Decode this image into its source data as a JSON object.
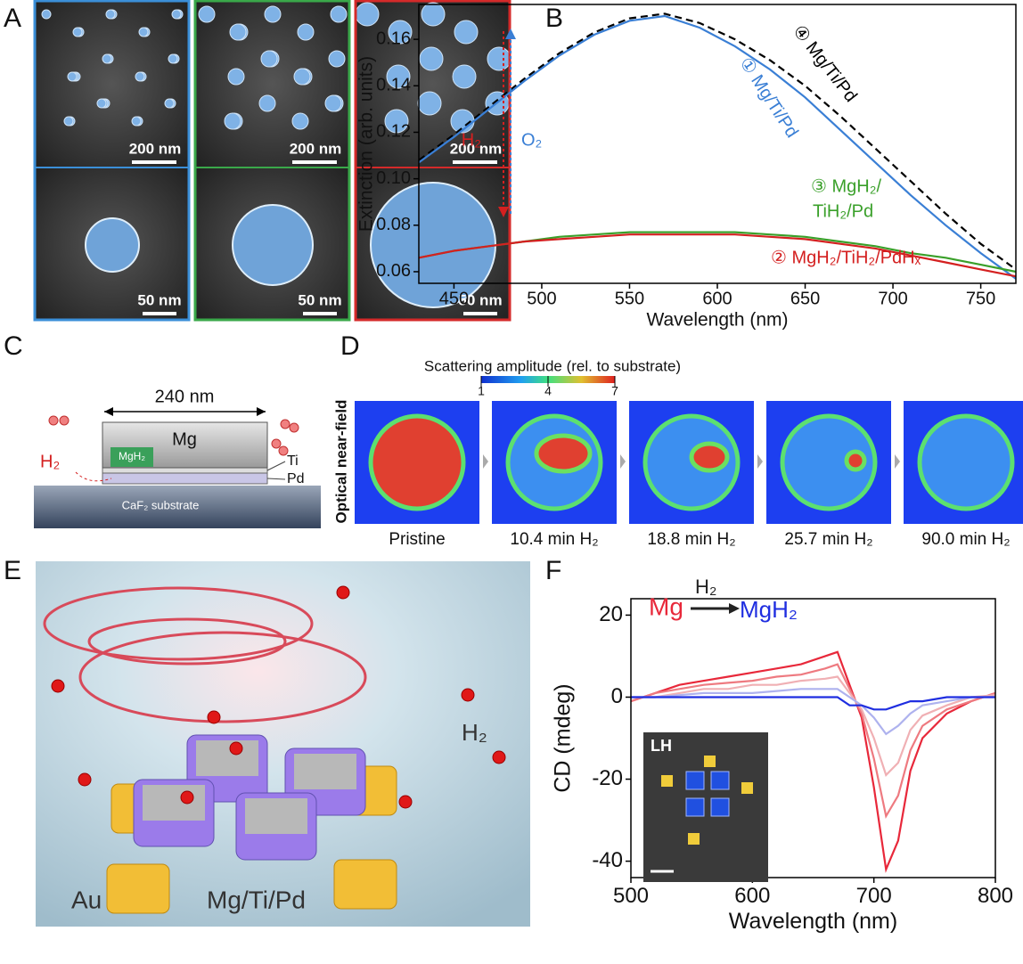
{
  "panels": {
    "a": {
      "label": "A",
      "scale_bars": [
        "200 nm",
        "200 nm",
        "200 nm",
        "50 nm",
        "50 nm",
        "50 nm"
      ]
    },
    "b": {
      "label": "B"
    },
    "c": {
      "label": "C",
      "width_label": "240 nm",
      "layers": [
        "Mg",
        "MgH₂",
        "Ti",
        "Pd"
      ],
      "gas": "H₂",
      "substrate": "CaF₂ substrate"
    },
    "d": {
      "label": "D",
      "colorbar": {
        "title": "Scattering amplitude (rel. to substrate)",
        "ticks": [
          1,
          4,
          7
        ]
      },
      "row_label": "Optical near-field",
      "frames": [
        "Pristine",
        "10.4 min H₂",
        "18.8 min H₂",
        "25.7 min H₂",
        "90.0 min H₂"
      ]
    },
    "e": {
      "label": "E",
      "labels": [
        "Au",
        "Mg/Ti/Pd",
        "H₂"
      ]
    },
    "f": {
      "label": "F"
    }
  },
  "chart_data": [
    {
      "type": "line",
      "x_label": "Wavelength (nm)",
      "y_label": "Extinction (arb. units)",
      "x": [
        430,
        450,
        470,
        490,
        510,
        530,
        550,
        570,
        590,
        610,
        630,
        650,
        670,
        690,
        710,
        730,
        750,
        770
      ],
      "series": [
        {
          "color": "#000000",
          "line_style": "dashed",
          "values": [
            0.108,
            0.119,
            0.131,
            0.143,
            0.154,
            0.163,
            0.169,
            0.171,
            0.167,
            0.16,
            0.151,
            0.14,
            0.127,
            0.113,
            0.099,
            0.085,
            0.072,
            0.061
          ]
        },
        {
          "color": "#3a7fd5",
          "values": [
            0.107,
            0.118,
            0.13,
            0.142,
            0.153,
            0.162,
            0.168,
            0.17,
            0.165,
            0.157,
            0.147,
            0.135,
            0.121,
            0.107,
            0.093,
            0.08,
            0.068,
            0.057
          ]
        },
        {
          "color": "#3aa02a",
          "values": [
            0.066,
            0.069,
            0.071,
            0.073,
            0.075,
            0.076,
            0.077,
            0.077,
            0.077,
            0.077,
            0.076,
            0.075,
            0.073,
            0.071,
            0.068,
            0.066,
            0.063,
            0.06
          ]
        },
        {
          "color": "#d42020",
          "values": [
            0.066,
            0.069,
            0.071,
            0.073,
            0.074,
            0.075,
            0.076,
            0.076,
            0.076,
            0.076,
            0.075,
            0.074,
            0.072,
            0.07,
            0.067,
            0.064,
            0.061,
            0.058
          ]
        }
      ],
      "annotations": [
        "H₂",
        "O₂",
        "④ Mg/Ti/Pd",
        "① Mg/Ti/Pd",
        "③ MgH₂/",
        "TiH₂/Pd",
        "② MgH₂/TiH₂/PdHₓ"
      ],
      "xlim": [
        430,
        770
      ],
      "xticks": [
        450,
        500,
        550,
        600,
        650,
        700,
        750
      ],
      "ylim": [
        0.055,
        0.175
      ],
      "yticks": [
        0.06,
        0.08,
        {
          "value": 0.1,
          "label": "0.10"
        },
        0.12,
        0.14,
        0.16
      ]
    },
    {
      "type": "line",
      "x_label": "Wavelength (nm)",
      "y_label": "CD (mdeg)",
      "x": [
        500,
        520,
        540,
        560,
        580,
        600,
        620,
        640,
        660,
        670,
        680,
        690,
        700,
        710,
        720,
        730,
        740,
        760,
        780,
        800
      ],
      "series": [
        {
          "color": "#e8283a",
          "values": [
            -1,
            1,
            3,
            4,
            5,
            6,
            7,
            8,
            10,
            11,
            3,
            -5,
            -22,
            -42,
            -35,
            -18,
            -10,
            -4,
            -1,
            1
          ]
        },
        {
          "color": "#ee7a80",
          "values": [
            -1,
            1,
            2,
            3,
            3.5,
            4,
            5,
            5.5,
            7,
            8,
            2,
            -4,
            -15,
            -29,
            -24,
            -13,
            -7,
            -3,
            -1,
            1
          ]
        },
        {
          "color": "#f0b0b4",
          "values": [
            0,
            0,
            1,
            2,
            2,
            3,
            3,
            4,
            4.5,
            5,
            1,
            -3,
            -10,
            -19,
            -16,
            -8,
            -4.5,
            -2,
            0,
            0.5
          ]
        },
        {
          "color": "#aeb2ee",
          "values": [
            0,
            0,
            0.5,
            1,
            1,
            1,
            1.5,
            2,
            2,
            2,
            0,
            -2,
            -5,
            -9,
            -7,
            -4,
            -2,
            -1,
            0,
            0
          ]
        },
        {
          "color": "#1f2ee0",
          "values": [
            0,
            0,
            0,
            0,
            0,
            0,
            0,
            0,
            0,
            0,
            -2,
            -2,
            -3,
            -3,
            -2,
            -1,
            -1,
            0,
            0,
            0
          ]
        }
      ],
      "annotations": [
        "Mg",
        "H₂",
        "MgH₂"
      ],
      "inset_label": "LH",
      "xlim": [
        500,
        800
      ],
      "xticks": [
        500,
        600,
        700,
        800
      ],
      "ylim": [
        -44,
        24
      ],
      "yticks": [
        -40,
        -20,
        0,
        20
      ]
    }
  ]
}
